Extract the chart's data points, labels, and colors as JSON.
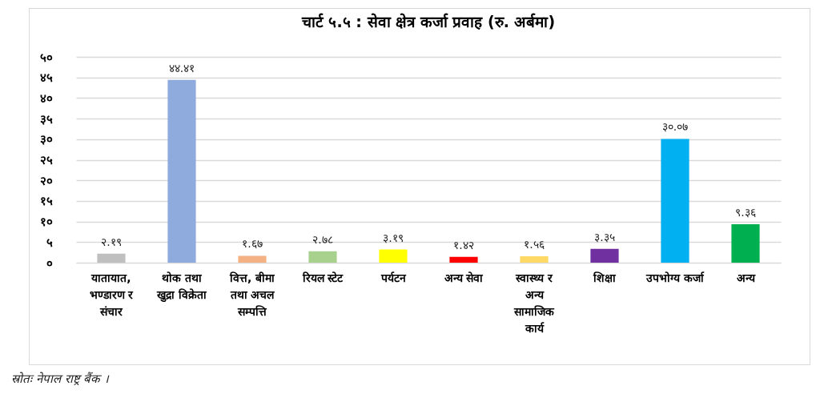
{
  "chart_data": {
    "type": "bar",
    "title": "चार्ट ५.५ : सेवा क्षेत्र कर्जा प्रवाह (रु. अर्बमा)",
    "categories": [
      "यातायात, भण्डारण र संचार",
      "थोक तथा खुद्रा विक्रेता",
      "वित्त, बीमा तथा अचल सम्पत्ति",
      "रियल स्टेट",
      "पर्यटन",
      "अन्य सेवा",
      "स्वास्थ्य र अन्य सामाजिक कार्य",
      "शिक्षा",
      "उपभोग्य कर्जा",
      "अन्य"
    ],
    "values": [
      2.19,
      44.41,
      1.67,
      2.78,
      3.19,
      1.42,
      1.56,
      3.35,
      30.07,
      9.36
    ],
    "value_labels": [
      "२.१९",
      "४४.४१",
      "१.६७",
      "२.७८",
      "३.१९",
      "१.४२",
      "१.५६",
      "३.३५",
      "३०.०७",
      "९.३६"
    ],
    "colors": [
      "#bfbfbf",
      "#8faadc",
      "#f4b183",
      "#a9d18e",
      "#ffff00",
      "#ff0000",
      "#ffd966",
      "#7030a0",
      "#00b0f0",
      "#00b050"
    ],
    "ylim": [
      0,
      50
    ],
    "yticks": [
      {
        "value": 0,
        "label": "०"
      },
      {
        "value": 5,
        "label": "५"
      },
      {
        "value": 10,
        "label": "१०"
      },
      {
        "value": 15,
        "label": "१५"
      },
      {
        "value": 20,
        "label": "२०"
      },
      {
        "value": 25,
        "label": "२५"
      },
      {
        "value": 30,
        "label": "३०"
      },
      {
        "value": 35,
        "label": "३५"
      },
      {
        "value": 40,
        "label": "४०"
      },
      {
        "value": 45,
        "label": "४५"
      },
      {
        "value": 50,
        "label": "५०"
      }
    ],
    "grid": "y",
    "annotations": [
      "स्रोतः नेपाल राष्ट्र बैंक ।"
    ]
  }
}
